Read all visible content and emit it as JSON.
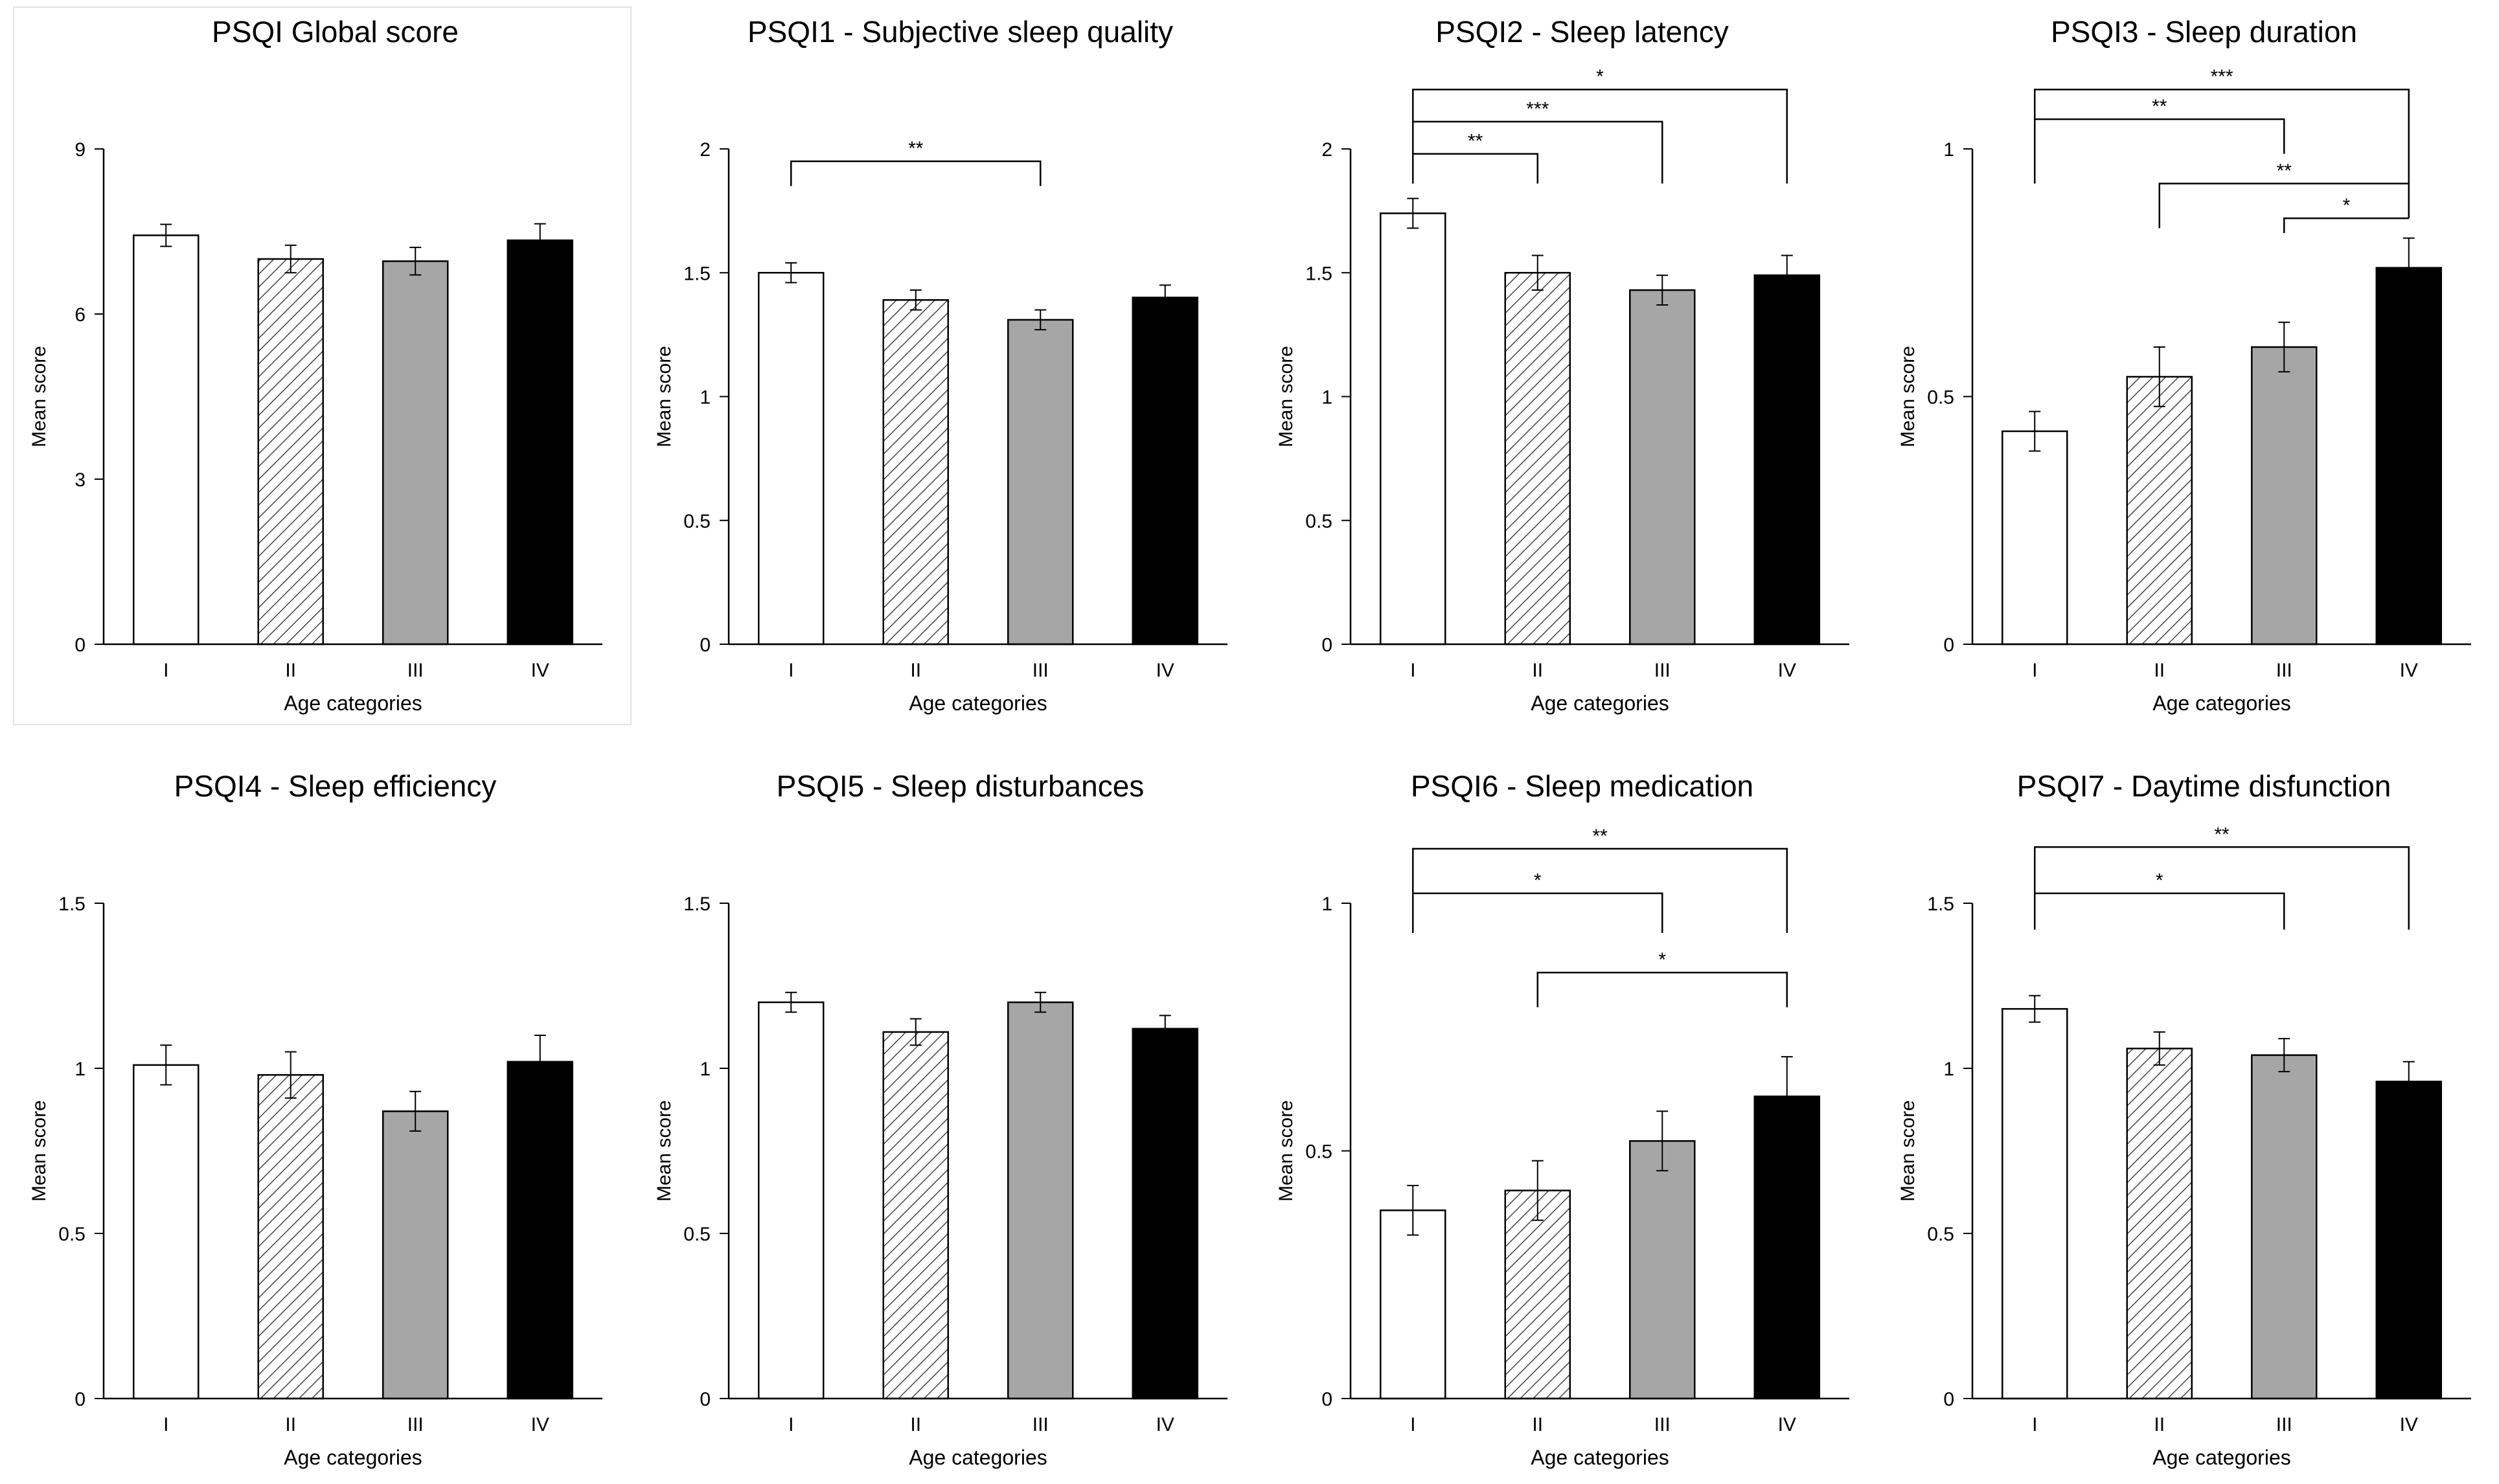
{
  "figure": {
    "colors": {
      "I": "#ffffff",
      "II": "hatched",
      "III": "#a6a6a6",
      "IV": "#000000"
    }
  },
  "chart_data": [
    {
      "type": "bar",
      "title": "PSQI Global score",
      "xlabel": "Age categories",
      "ylabel": "Mean score",
      "categories": [
        "I",
        "II",
        "III",
        "IV"
      ],
      "values": [
        7.43,
        7.0,
        6.96,
        7.34
      ],
      "errors": [
        0.2,
        0.25,
        0.25,
        0.3
      ],
      "ylim": [
        0,
        9
      ],
      "yticks": [
        0,
        3,
        6,
        9
      ],
      "significance": []
    },
    {
      "type": "bar",
      "title": "PSQI1 - Subjective sleep quality",
      "xlabel": "Age categories",
      "ylabel": "Mean score",
      "categories": [
        "I",
        "II",
        "III",
        "IV"
      ],
      "values": [
        1.5,
        1.39,
        1.31,
        1.4
      ],
      "errors": [
        0.04,
        0.04,
        0.04,
        0.05
      ],
      "ylim": [
        0,
        2
      ],
      "yticks": [
        0,
        0.5,
        1,
        1.5,
        2
      ],
      "significance": [
        {
          "from": "I",
          "to": "III",
          "label": "**",
          "top": 1.95,
          "left_end": 1.85,
          "right_end": 1.85
        }
      ]
    },
    {
      "type": "bar",
      "title": "PSQI2 - Sleep latency",
      "xlabel": "Age categories",
      "ylabel": "Mean score",
      "categories": [
        "I",
        "II",
        "III",
        "IV"
      ],
      "values": [
        1.74,
        1.5,
        1.43,
        1.49
      ],
      "errors": [
        0.06,
        0.07,
        0.06,
        0.08
      ],
      "ylim": [
        0,
        2
      ],
      "yticks": [
        0,
        0.5,
        1,
        1.5,
        2
      ],
      "significance": [
        {
          "from": "I",
          "to": "II",
          "label": "**",
          "top": 1.98,
          "left_end": 1.86,
          "right_end": 1.86
        },
        {
          "from": "I",
          "to": "III",
          "label": "***",
          "top": 2.11,
          "left_end": 1.86,
          "right_end": 1.86
        },
        {
          "from": "I",
          "to": "IV",
          "label": "*",
          "top": 2.24,
          "left_end": 1.86,
          "right_end": 1.86
        }
      ]
    },
    {
      "type": "bar",
      "title": "PSQI3 - Sleep duration",
      "xlabel": "Age categories",
      "ylabel": "Mean score",
      "categories": [
        "I",
        "II",
        "III",
        "IV"
      ],
      "values": [
        0.43,
        0.54,
        0.6,
        0.76
      ],
      "errors": [
        0.04,
        0.06,
        0.05,
        0.06
      ],
      "ylim": [
        0,
        1
      ],
      "yticks": [
        0,
        0.5,
        1
      ],
      "significance": [
        {
          "from": "III",
          "to": "IV",
          "label": "*",
          "top": 0.86,
          "left_end": 0.83,
          "right_end": 0.86
        },
        {
          "from": "II",
          "to": "IV",
          "label": "**",
          "top": 0.93,
          "left_end": 0.84,
          "right_end": 0.86
        },
        {
          "from": "I",
          "to": "III",
          "label": "**",
          "top": 1.06,
          "left_end": 0.93,
          "right_end": 0.99
        },
        {
          "from": "I",
          "to": "IV",
          "label": "***",
          "top": 1.12,
          "left_end": 0.93,
          "right_end": 0.93
        }
      ]
    },
    {
      "type": "bar",
      "title": "PSQI4 - Sleep efficiency",
      "xlabel": "Age categories",
      "ylabel": "Mean score",
      "categories": [
        "I",
        "II",
        "III",
        "IV"
      ],
      "values": [
        1.01,
        0.98,
        0.87,
        1.02
      ],
      "errors": [
        0.06,
        0.07,
        0.06,
        0.08
      ],
      "ylim": [
        0,
        1.5
      ],
      "yticks": [
        0,
        0.5,
        1,
        1.5
      ],
      "significance": []
    },
    {
      "type": "bar",
      "title": "PSQI5 - Sleep disturbances",
      "xlabel": "Age categories",
      "ylabel": "Mean score",
      "categories": [
        "I",
        "II",
        "III",
        "IV"
      ],
      "values": [
        1.2,
        1.11,
        1.2,
        1.12
      ],
      "errors": [
        0.03,
        0.04,
        0.03,
        0.04
      ],
      "ylim": [
        0,
        1.5
      ],
      "yticks": [
        0,
        0.5,
        1,
        1.5
      ],
      "significance": []
    },
    {
      "type": "bar",
      "title": "PSQI6 - Sleep medication",
      "xlabel": "Age categories",
      "ylabel": "Mean score",
      "categories": [
        "I",
        "II",
        "III",
        "IV"
      ],
      "values": [
        0.38,
        0.42,
        0.52,
        0.61
      ],
      "errors": [
        0.05,
        0.06,
        0.06,
        0.08
      ],
      "ylim": [
        0,
        1
      ],
      "yticks": [
        0,
        0.5,
        1
      ],
      "significance": [
        {
          "from": "II",
          "to": "IV",
          "label": "*",
          "top": 0.86,
          "left_end": 0.79,
          "right_end": 0.79
        },
        {
          "from": "I",
          "to": "III",
          "label": "*",
          "top": 1.02,
          "left_end": 0.94,
          "right_end": 0.94
        },
        {
          "from": "I",
          "to": "IV",
          "label": "**",
          "top": 1.11,
          "left_end": 0.94,
          "right_end": 0.94
        }
      ]
    },
    {
      "type": "bar",
      "title": "PSQI7 - Daytime disfunction",
      "xlabel": "Age categories",
      "ylabel": "Mean score",
      "categories": [
        "I",
        "II",
        "III",
        "IV"
      ],
      "values": [
        1.18,
        1.06,
        1.04,
        0.96
      ],
      "errors": [
        0.04,
        0.05,
        0.05,
        0.06
      ],
      "ylim": [
        0,
        1.5
      ],
      "yticks": [
        0,
        0.5,
        1,
        1.5
      ],
      "significance": [
        {
          "from": "I",
          "to": "III",
          "label": "*",
          "top": 1.53,
          "left_end": 1.42,
          "right_end": 1.42
        },
        {
          "from": "I",
          "to": "IV",
          "label": "**",
          "top": 1.67,
          "left_end": 1.42,
          "right_end": 1.42
        }
      ]
    }
  ]
}
